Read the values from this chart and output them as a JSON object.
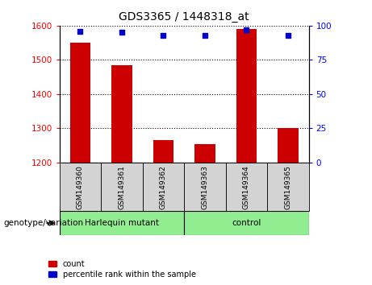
{
  "title": "GDS3365 / 1448318_at",
  "samples": [
    "GSM149360",
    "GSM149361",
    "GSM149362",
    "GSM149363",
    "GSM149364",
    "GSM149365"
  ],
  "counts": [
    1550,
    1485,
    1265,
    1253,
    1590,
    1300
  ],
  "percentiles": [
    96,
    95,
    93,
    93,
    97,
    93
  ],
  "ylim_left": [
    1200,
    1600
  ],
  "ylim_right": [
    0,
    100
  ],
  "yticks_left": [
    1200,
    1300,
    1400,
    1500,
    1600
  ],
  "yticks_right": [
    0,
    25,
    50,
    75,
    100
  ],
  "bar_color": "#cc0000",
  "dot_color": "#0000cc",
  "bar_width": 0.5,
  "group_label_left": "Harlequin mutant",
  "group_label_right": "control",
  "group_color": "#90ee90",
  "tick_bg_color": "#d3d3d3",
  "legend_count_label": "count",
  "legend_percentile_label": "percentile rank within the sample",
  "xlabel": "genotype/variation"
}
